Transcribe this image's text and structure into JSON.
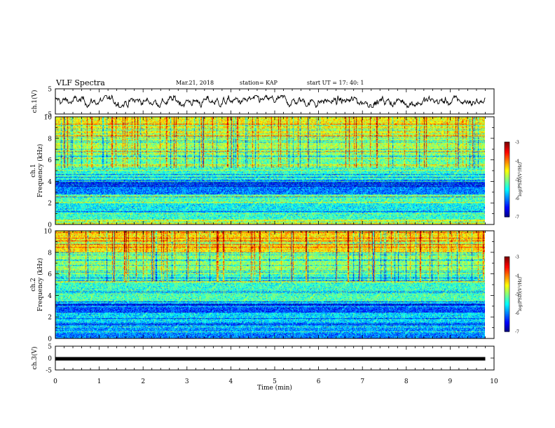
{
  "header": {
    "title": "VLF Spectra",
    "date": "Mar.21, 2018",
    "station": "station= KAP",
    "start": "start  UT =   17: 40: 1"
  },
  "chart_data": [
    {
      "type": "line",
      "name": "ch1-waveform",
      "ylabel": "ch.1(V)",
      "xlim": [
        0,
        10
      ],
      "ylim": [
        -5,
        5
      ],
      "yticks": [
        "5",
        "-5"
      ],
      "data_end_x": 9.8,
      "typical_range": [
        -1.5,
        1.5
      ]
    },
    {
      "type": "heatmap",
      "name": "ch1-spectrogram",
      "ylabel": "ch.1",
      "ylabel2": "Frequency (kHz)",
      "xlim": [
        0,
        10
      ],
      "ylim": [
        0,
        10
      ],
      "yticks": [
        "0",
        "2",
        "4",
        "6",
        "8",
        "10"
      ],
      "data_end_x": 9.8,
      "mean_logpsd_by_band": [
        {
          "f": [
            0.0,
            0.5
          ],
          "v": -4.6
        },
        {
          "f": [
            0.5,
            1.0
          ],
          "v": -5.3
        },
        {
          "f": [
            1.0,
            2.0
          ],
          "v": -5.5
        },
        {
          "f": [
            2.0,
            2.8
          ],
          "v": -5.2
        },
        {
          "f": [
            2.8,
            4.0
          ],
          "v": -6.0
        },
        {
          "f": [
            4.0,
            5.5
          ],
          "v": -5.3
        },
        {
          "f": [
            5.5,
            6.5
          ],
          "v": -5.1
        },
        {
          "f": [
            6.5,
            8.0
          ],
          "v": -4.8
        },
        {
          "f": [
            8.0,
            10.0
          ],
          "v": -4.5
        }
      ],
      "colorbar": {
        "label": "log(PSD)(V²/Hz)",
        "range": [
          -7,
          -3
        ],
        "ticks": [
          "-3",
          "-4",
          "-5",
          "-6",
          "-7"
        ]
      }
    },
    {
      "type": "heatmap",
      "name": "ch2-spectrogram",
      "ylabel": "ch.2",
      "ylabel2": "Frequency (kHz)",
      "xlim": [
        0,
        10
      ],
      "ylim": [
        0,
        10
      ],
      "yticks": [
        "0",
        "2",
        "4",
        "6",
        "8",
        "10"
      ],
      "data_end_x": 9.8,
      "mean_logpsd_by_band": [
        {
          "f": [
            0.0,
            0.5
          ],
          "v": -6.0
        },
        {
          "f": [
            0.5,
            1.5
          ],
          "v": -5.9
        },
        {
          "f": [
            1.5,
            2.5
          ],
          "v": -5.6
        },
        {
          "f": [
            2.5,
            3.5
          ],
          "v": -6.2
        },
        {
          "f": [
            3.5,
            4.5
          ],
          "v": -5.2
        },
        {
          "f": [
            4.5,
            6.0
          ],
          "v": -5.3
        },
        {
          "f": [
            6.0,
            8.0
          ],
          "v": -4.9
        },
        {
          "f": [
            8.0,
            10.0
          ],
          "v": -4.4
        }
      ],
      "colorbar": {
        "label": "log(PSD)(V²/Hz)",
        "range": [
          -7,
          -3
        ],
        "ticks": [
          "-3",
          "-4",
          "-5",
          "-6",
          "-7"
        ]
      }
    },
    {
      "type": "line",
      "name": "ch3-waveform",
      "ylabel": "ch.3(V)",
      "xlim": [
        0,
        10
      ],
      "ylim": [
        -5,
        5
      ],
      "yticks": [
        "5",
        "0",
        "-5"
      ],
      "data_end_x": 9.8,
      "constant_value": -0.3
    }
  ],
  "xaxis": {
    "label": "Time (min)",
    "ticks": [
      "0",
      "1",
      "2",
      "3",
      "4",
      "5",
      "6",
      "7",
      "8",
      "9",
      "10"
    ]
  }
}
